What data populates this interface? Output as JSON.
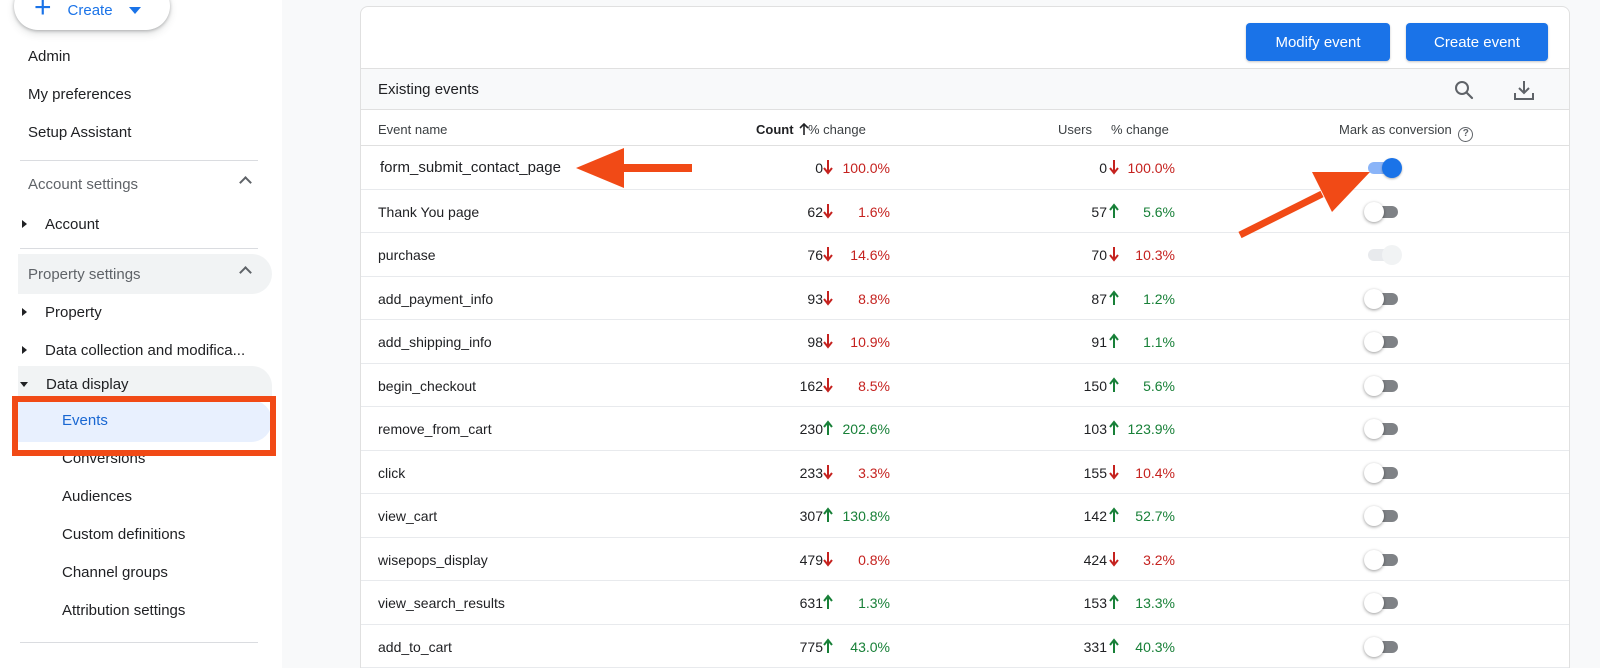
{
  "sidebar": {
    "create_label": "Create",
    "top_items": [
      "Admin",
      "My preferences",
      "Setup Assistant"
    ],
    "account_section": "Account settings",
    "account_item": "Account",
    "property_section": "Property settings",
    "property_item": "Property",
    "data_collection_item": "Data collection and modifica...",
    "data_display_item": "Data display",
    "sub_items": [
      "Events",
      "Conversions",
      "Audiences",
      "Custom definitions",
      "Channel groups",
      "Attribution settings"
    ],
    "active_item": "Events"
  },
  "actions": {
    "modify_label": "Modify event",
    "create_label": "Create event"
  },
  "table": {
    "title": "Existing events",
    "col_event": "Event name",
    "col_count": "Count",
    "col_change": "% change",
    "col_users": "Users",
    "col_users_change": "% change",
    "col_conversion": "Mark as conversion",
    "help_glyph": "?",
    "rows": [
      {
        "name": "form_submit_contact_page",
        "count": "0",
        "count_dir": "down",
        "count_change": "100.0%",
        "users": "0",
        "users_dir": "down",
        "users_change": "100.0%",
        "conversion": "on"
      },
      {
        "name": "Thank You page",
        "count": "62",
        "count_dir": "down",
        "count_change": "1.6%",
        "users": "57",
        "users_dir": "up",
        "users_change": "5.6%",
        "conversion": "off"
      },
      {
        "name": "purchase",
        "count": "76",
        "count_dir": "down",
        "count_change": "14.6%",
        "users": "70",
        "users_dir": "down",
        "users_change": "10.3%",
        "conversion": "disabled"
      },
      {
        "name": "add_payment_info",
        "count": "93",
        "count_dir": "down",
        "count_change": "8.8%",
        "users": "87",
        "users_dir": "up",
        "users_change": "1.2%",
        "conversion": "off"
      },
      {
        "name": "add_shipping_info",
        "count": "98",
        "count_dir": "down",
        "count_change": "10.9%",
        "users": "91",
        "users_dir": "up",
        "users_change": "1.1%",
        "conversion": "off"
      },
      {
        "name": "begin_checkout",
        "count": "162",
        "count_dir": "down",
        "count_change": "8.5%",
        "users": "150",
        "users_dir": "up",
        "users_change": "5.6%",
        "conversion": "off"
      },
      {
        "name": "remove_from_cart",
        "count": "230",
        "count_dir": "up",
        "count_change": "202.6%",
        "users": "103",
        "users_dir": "up",
        "users_change": "123.9%",
        "conversion": "off"
      },
      {
        "name": "click",
        "count": "233",
        "count_dir": "down",
        "count_change": "3.3%",
        "users": "155",
        "users_dir": "down",
        "users_change": "10.4%",
        "conversion": "off"
      },
      {
        "name": "view_cart",
        "count": "307",
        "count_dir": "up",
        "count_change": "130.8%",
        "users": "142",
        "users_dir": "up",
        "users_change": "52.7%",
        "conversion": "off"
      },
      {
        "name": "wisepops_display",
        "count": "479",
        "count_dir": "down",
        "count_change": "0.8%",
        "users": "424",
        "users_dir": "down",
        "users_change": "3.2%",
        "conversion": "off"
      },
      {
        "name": "view_search_results",
        "count": "631",
        "count_dir": "up",
        "count_change": "1.3%",
        "users": "153",
        "users_dir": "up",
        "users_change": "13.3%",
        "conversion": "off"
      },
      {
        "name": "add_to_cart",
        "count": "775",
        "count_dir": "up",
        "count_change": "43.0%",
        "users": "331",
        "users_dir": "up",
        "users_change": "40.3%",
        "conversion": "off"
      }
    ]
  },
  "colors": {
    "accent": "#1a73e8",
    "annotation": "#f14a16",
    "down": "#c5221f",
    "up": "#188038"
  }
}
